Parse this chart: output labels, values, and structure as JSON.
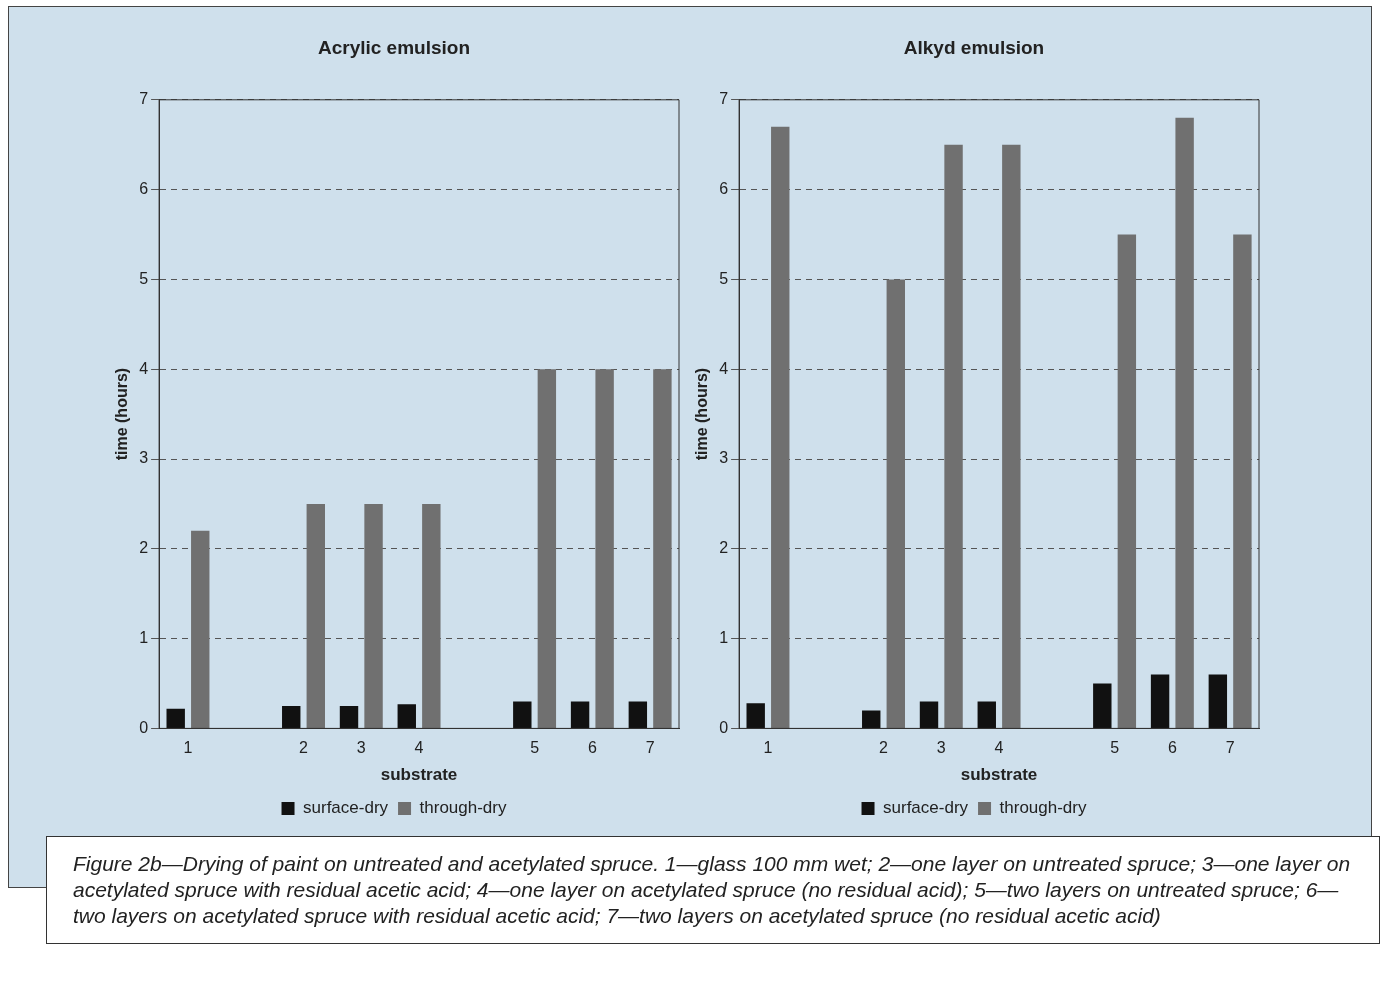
{
  "chart_data": [
    {
      "type": "bar",
      "title": "Acrylic emulsion",
      "xlabel": "substrate",
      "ylabel": "time (hours)",
      "categories": [
        "1",
        null,
        "2",
        "3",
        "4",
        null,
        "5",
        "6",
        "7"
      ],
      "series": [
        {
          "name": "surface-dry",
          "color": "#111111",
          "values": [
            0.22,
            null,
            0.25,
            0.25,
            0.27,
            null,
            0.3,
            0.3,
            0.3
          ]
        },
        {
          "name": "through-dry",
          "color": "#707070",
          "values": [
            2.2,
            null,
            2.5,
            2.5,
            2.5,
            null,
            4,
            4,
            4
          ]
        }
      ],
      "ylim": [
        0,
        7
      ],
      "yticks": [
        0,
        1,
        2,
        3,
        4,
        5,
        6,
        7
      ],
      "grid": "y",
      "legend": "bottom"
    },
    {
      "type": "bar",
      "title": "Alkyd emulsion",
      "xlabel": "substrate",
      "ylabel": "time (hours)",
      "categories": [
        "1",
        null,
        "2",
        "3",
        "4",
        null,
        "5",
        "6",
        "7"
      ],
      "series": [
        {
          "name": "surface-dry",
          "color": "#111111",
          "values": [
            0.28,
            null,
            0.2,
            0.3,
            0.3,
            null,
            0.5,
            0.6,
            0.6
          ]
        },
        {
          "name": "through-dry",
          "color": "#707070",
          "values": [
            6.7,
            null,
            5.0,
            6.5,
            6.5,
            null,
            5.5,
            6.8,
            5.5
          ]
        }
      ],
      "ylim": [
        0,
        7
      ],
      "yticks": [
        0,
        1,
        2,
        3,
        4,
        5,
        6,
        7
      ],
      "grid": "y",
      "legend": "bottom",
      "annotations": [
        "Figure 2b—Drying of paint on untreated and acetylated spruce. 1—glass 100 mm wet; 2—one layer on untreated spruce; 3—one layer on acetylated spruce with residual acetic acid; 4—one layer on acetylated spruce (no residual acid); 5—two layers on untreated spruce; 6—two layers on acetylated spruce with residual acetic acid; 7—two layers on acetylated spruce (no residual acetic acid)"
      ]
    }
  ]
}
